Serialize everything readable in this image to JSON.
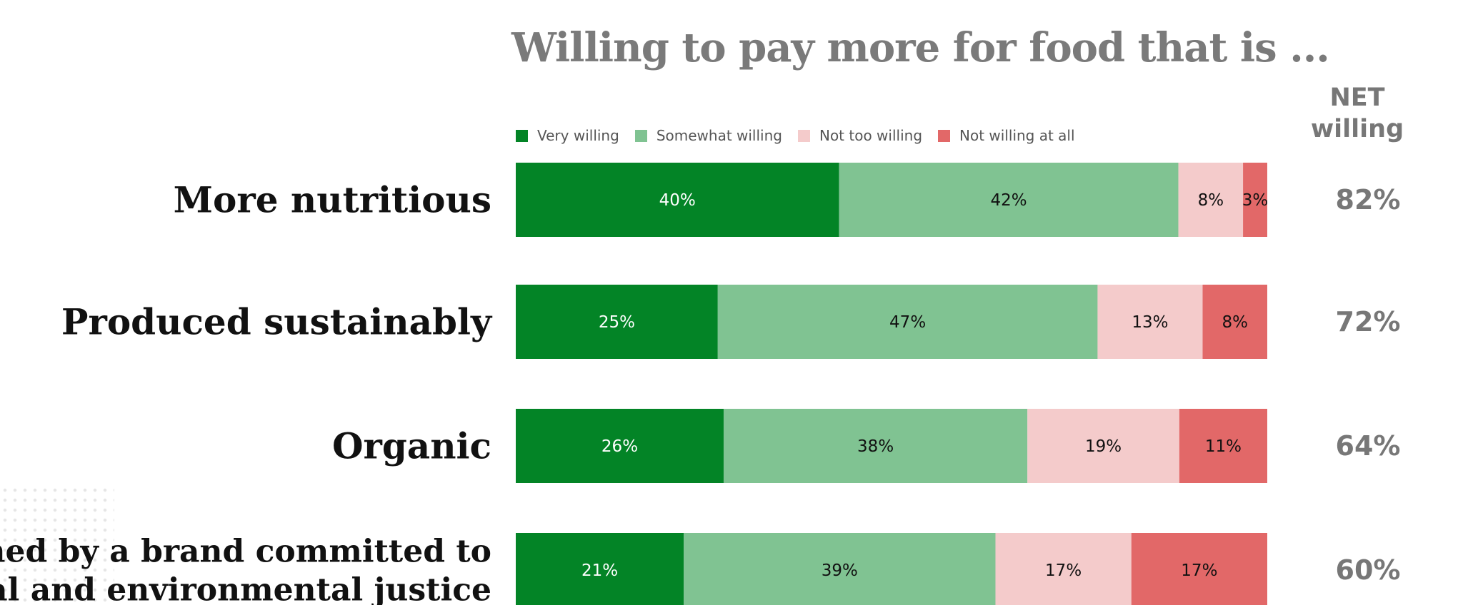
{
  "title": "Willing to pay more for food that is ...",
  "net_header_line1": "NET",
  "net_header_line2": "willing",
  "colors": {
    "very_willing": "#038426",
    "somewhat_willing": "#80c392",
    "not_too_willing": "#f4cbcb",
    "not_willing_at_all": "#e26868"
  },
  "chart_data": {
    "type": "bar",
    "orientation": "horizontal",
    "stacked": true,
    "title": "Willing to pay more for food that is ...",
    "categories": [
      [
        "More nutritious"
      ],
      [
        "Produced sustainably"
      ],
      [
        "Organic"
      ],
      [
        "Owned by a brand committed to",
        "social and environmental justice"
      ]
    ],
    "series": [
      {
        "name": "Very willing",
        "color": "#038426",
        "label_color": "#ffffff",
        "values": [
          40,
          25,
          26,
          21
        ]
      },
      {
        "name": "Somewhat willing",
        "color": "#80c392",
        "label_color": "#111111",
        "values": [
          42,
          47,
          38,
          39
        ]
      },
      {
        "name": "Not too willing",
        "color": "#f4cbcb",
        "label_color": "#111111",
        "values": [
          8,
          13,
          19,
          17
        ]
      },
      {
        "name": "Not willing at all",
        "color": "#e26868",
        "label_color": "#111111",
        "values": [
          3,
          8,
          11,
          17
        ]
      }
    ],
    "net_willing": [
      82,
      72,
      64,
      60
    ],
    "value_suffix": "%",
    "legend_position": "top",
    "grid": false
  }
}
